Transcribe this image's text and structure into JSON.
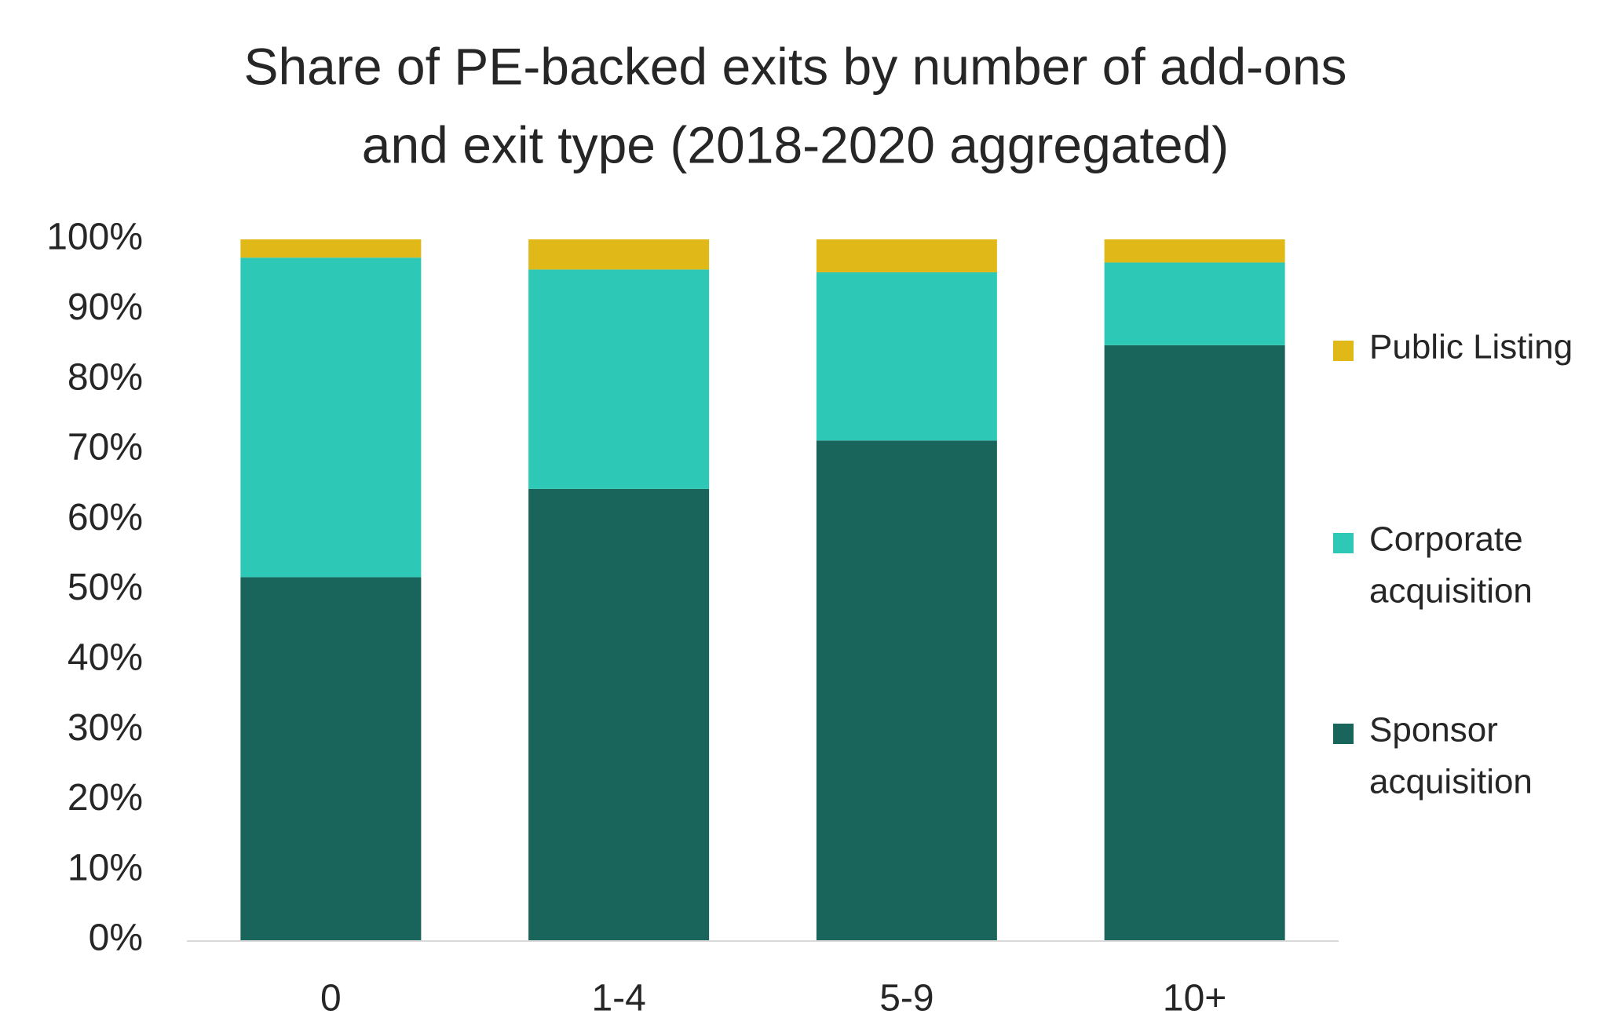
{
  "chart_data": {
    "type": "bar",
    "stacked": true,
    "percent_stacked": true,
    "title_lines": [
      "Share of PE-backed exits by number of add-ons",
      "and exit type (2018-2020 aggregated)"
    ],
    "xlabel": "",
    "ylabel": "",
    "categories": [
      "0",
      "1-4",
      "5-9",
      "10+"
    ],
    "ylim": [
      0,
      100
    ],
    "y_ticks": [
      "0%",
      "10%",
      "20%",
      "30%",
      "40%",
      "50%",
      "60%",
      "70%",
      "80%",
      "90%",
      "100%"
    ],
    "grid": false,
    "legend_position": "right",
    "series": [
      {
        "name": "Sponsor acquisition",
        "legend_lines": [
          "Sponsor",
          "acquisition"
        ],
        "color": "#19655c",
        "values": [
          51.8,
          64.4,
          71.3,
          84.9
        ]
      },
      {
        "name": "Corporate acquisition",
        "legend_lines": [
          "Corporate",
          "acquisition"
        ],
        "color": "#2ec9b6",
        "values": [
          45.6,
          31.3,
          24.0,
          11.8
        ]
      },
      {
        "name": "Public Listing",
        "legend_lines": [
          "Public Listing"
        ],
        "color": "#e0b818",
        "values": [
          2.6,
          4.3,
          4.7,
          3.3
        ]
      }
    ]
  }
}
